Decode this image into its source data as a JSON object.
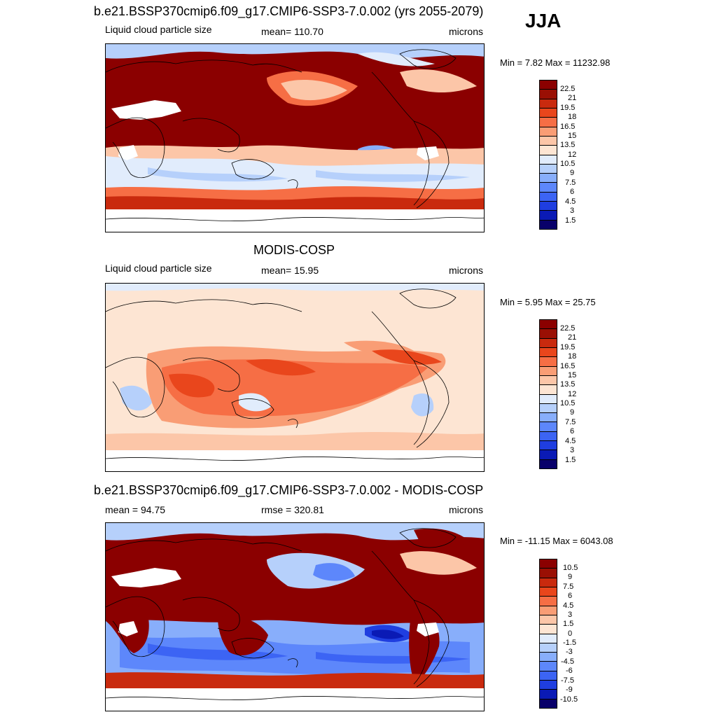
{
  "season": "JJA",
  "colors": {
    "diverging": [
      "#08006a",
      "#0a1ab5",
      "#1f3ee0",
      "#3c64f4",
      "#5d87fb",
      "#88aefb",
      "#b6d0fb",
      "#e1ecfc",
      "#fde5d3",
      "#fcc6a8",
      "#f99d75",
      "#f66e45",
      "#e9461c",
      "#c92a0e",
      "#9a0f04",
      "#8b0000"
    ],
    "land_line": "#000000"
  },
  "panels": [
    {
      "title": "b.e21.BSSP370cmip6.f09_g17.CMIP6-SSP3-7.0.002 (yrs 2055-2079)",
      "left_label": "Liquid cloud particle size",
      "center_label": "mean= 110.70",
      "right_label": "microns",
      "minmax": "Min =   7.82 Max = 11232.98",
      "ticks": [
        "22.5",
        "21",
        "19.5",
        "18",
        "16.5",
        "15",
        "13.5",
        "12",
        "10.5",
        "9",
        "7.5",
        "6",
        "4.5",
        "3",
        "1.5"
      ]
    },
    {
      "title": "MODIS-COSP",
      "left_label": "Liquid cloud particle size",
      "center_label": "mean=  15.95",
      "right_label": "microns",
      "minmax": "Min =   5.95 Max =  25.75",
      "ticks": [
        "22.5",
        "21",
        "19.5",
        "18",
        "16.5",
        "15",
        "13.5",
        "12",
        "10.5",
        "9",
        "7.5",
        "6",
        "4.5",
        "3",
        "1.5"
      ]
    },
    {
      "title": "b.e21.BSSP370cmip6.f09_g17.CMIP6-SSP3-7.0.002 - MODIS-COSP",
      "left_label": "mean =  94.75",
      "center_label": "rmse = 320.81",
      "right_label": "microns",
      "minmax": "Min = -11.15 Max = 6043.08",
      "ticks": [
        "10.5",
        "9",
        "7.5",
        "6",
        "4.5",
        "3",
        "1.5",
        "0",
        "-1.5",
        "-3",
        "-4.5",
        "-6",
        "-7.5",
        "-9",
        "-10.5"
      ]
    }
  ]
}
